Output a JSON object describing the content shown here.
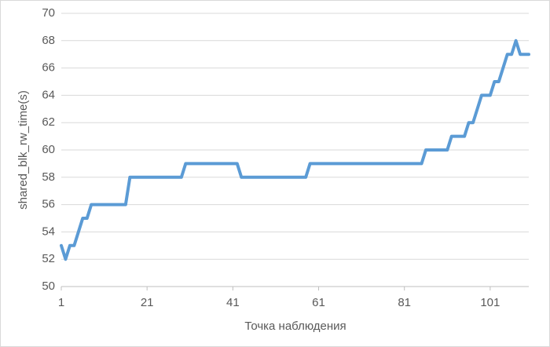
{
  "chart_data": {
    "type": "line",
    "x_label": "Точка наблюдения",
    "y_label": "shared_blk_rw_time(s)",
    "x": [
      1,
      2,
      3,
      4,
      5,
      6,
      7,
      8,
      9,
      10,
      11,
      12,
      13,
      14,
      15,
      16,
      17,
      18,
      19,
      20,
      21,
      22,
      23,
      24,
      25,
      26,
      27,
      28,
      29,
      30,
      31,
      32,
      33,
      34,
      35,
      36,
      37,
      38,
      39,
      40,
      41,
      42,
      43,
      44,
      45,
      46,
      47,
      48,
      49,
      50,
      51,
      52,
      53,
      54,
      55,
      56,
      57,
      58,
      59,
      60,
      61,
      62,
      63,
      64,
      65,
      66,
      67,
      68,
      69,
      70,
      71,
      72,
      73,
      74,
      75,
      76,
      77,
      78,
      79,
      80,
      81,
      82,
      83,
      84,
      85,
      86,
      87,
      88,
      89,
      90,
      91,
      92,
      93,
      94,
      95,
      96,
      97,
      98,
      99,
      100,
      101,
      102,
      103,
      104,
      105,
      106,
      107,
      108,
      109,
      110
    ],
    "series": [
      {
        "name": "shared_blk_rw_time(s)",
        "color": "#5b9bd5",
        "values": [
          53,
          52,
          53,
          53,
          54,
          55,
          55,
          56,
          56,
          56,
          56,
          56,
          56,
          56,
          56,
          56,
          58,
          58,
          58,
          58,
          58,
          58,
          58,
          58,
          58,
          58,
          58,
          58,
          58,
          59,
          59,
          59,
          59,
          59,
          59,
          59,
          59,
          59,
          59,
          59,
          59,
          59,
          58,
          58,
          58,
          58,
          58,
          58,
          58,
          58,
          58,
          58,
          58,
          58,
          58,
          58,
          58,
          58,
          59,
          59,
          59,
          59,
          59,
          59,
          59,
          59,
          59,
          59,
          59,
          59,
          59,
          59,
          59,
          59,
          59,
          59,
          59,
          59,
          59,
          59,
          59,
          59,
          59,
          59,
          59,
          60,
          60,
          60,
          60,
          60,
          60,
          61,
          61,
          61,
          61,
          62,
          62,
          63,
          64,
          64,
          64,
          65,
          65,
          66,
          67,
          67,
          68,
          67,
          67,
          67
        ]
      }
    ],
    "xlim": [
      1,
      110
    ],
    "xticks": [
      1,
      21,
      41,
      61,
      81,
      101
    ],
    "ylim": [
      50,
      70
    ],
    "yticks": [
      50,
      52,
      54,
      56,
      58,
      60,
      62,
      64,
      66,
      68,
      70
    ],
    "grid": true
  }
}
